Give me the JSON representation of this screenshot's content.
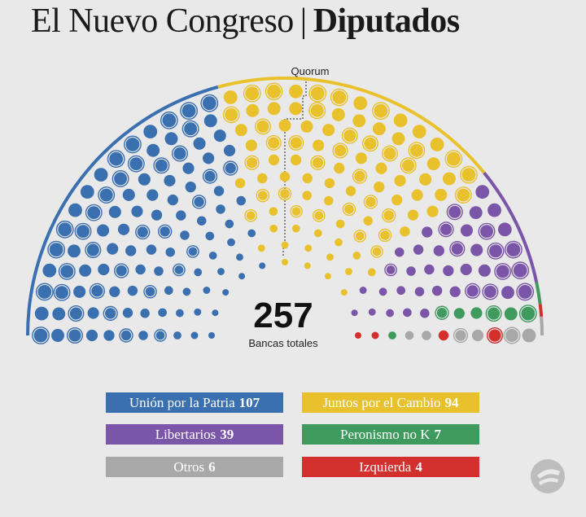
{
  "header": {
    "title_main": "El Nuevo Congreso",
    "separator": "|",
    "title_bold": "Diputados"
  },
  "chart_data": {
    "type": "hemicycle",
    "total": 257,
    "total_label": "Bancas totales",
    "quorum_label": "Quorum",
    "rows": 11,
    "series": [
      {
        "name": "Unión por la Patria",
        "value": 107,
        "color": "#3a6fb0"
      },
      {
        "name": "Juntos por el Cambio",
        "value": 94,
        "color": "#e9c12c"
      },
      {
        "name": "Libertarios",
        "value": 39,
        "color": "#7b55a8"
      },
      {
        "name": "Peronismo no K",
        "value": 7,
        "color": "#3f9a5e"
      },
      {
        "name": "Izquierda",
        "value": 4,
        "color": "#d3302d"
      },
      {
        "name": "Otros",
        "value": 6,
        "color": "#a8a8a8"
      }
    ]
  },
  "legend": [
    {
      "name": "Unión por la Patria",
      "count": "107",
      "color": "#3a6fb0"
    },
    {
      "name": "Juntos por el Cambio",
      "count": "94",
      "color": "#e9c12c"
    },
    {
      "name": "Libertarios",
      "count": "39",
      "color": "#7b55a8"
    },
    {
      "name": "Peronismo no K",
      "count": "7",
      "color": "#3f9a5e"
    },
    {
      "name": "Otros",
      "count": "6",
      "color": "#a8a8a8"
    },
    {
      "name": "Izquierda",
      "count": "4",
      "color": "#d3302d"
    }
  ],
  "logo_icon": "clarin-logo-icon"
}
